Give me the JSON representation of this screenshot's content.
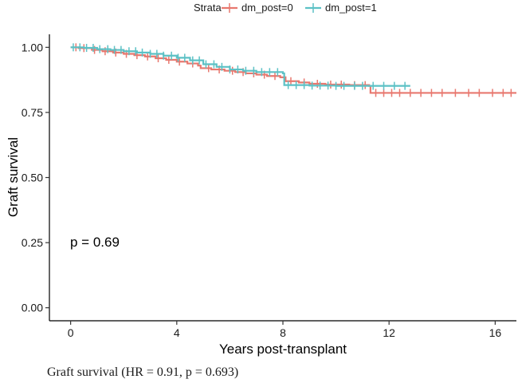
{
  "chart_data": {
    "type": "line",
    "subtype": "kaplan-meier",
    "title": "",
    "xlabel": "Years post-transplant",
    "ylabel": "Graft survival",
    "xlim": [
      -0.8,
      16.8
    ],
    "ylim": [
      -0.05,
      1.05
    ],
    "x_ticks": [
      0,
      4,
      8,
      12,
      16
    ],
    "x_tick_labels": [
      "0",
      "4",
      "8",
      "12",
      "16"
    ],
    "y_ticks": [
      0.0,
      0.25,
      0.5,
      0.75,
      1.0
    ],
    "y_tick_labels": [
      "0.00",
      "0.25",
      "0.50",
      "0.75",
      "1.00"
    ],
    "grid": false,
    "legend": {
      "title": "Strata",
      "position": "top",
      "entries": [
        "dm_post=0",
        "dm_post=1"
      ]
    },
    "annotation": "p = 0.69",
    "series": [
      {
        "name": "dm_post=0",
        "color": "#E8786F",
        "points": [
          [
            0,
            1.0
          ],
          [
            0.3,
            0.997
          ],
          [
            0.8,
            0.99
          ],
          [
            1.2,
            0.985
          ],
          [
            1.6,
            0.98
          ],
          [
            2.0,
            0.975
          ],
          [
            2.4,
            0.97
          ],
          [
            2.8,
            0.965
          ],
          [
            3.2,
            0.958
          ],
          [
            3.6,
            0.952
          ],
          [
            4.0,
            0.945
          ],
          [
            4.4,
            0.938
          ],
          [
            4.8,
            0.93
          ],
          [
            4.9,
            0.92
          ],
          [
            5.3,
            0.915
          ],
          [
            5.8,
            0.91
          ],
          [
            6.2,
            0.905
          ],
          [
            6.6,
            0.9
          ],
          [
            7.0,
            0.895
          ],
          [
            7.4,
            0.89
          ],
          [
            7.9,
            0.885
          ],
          [
            8.1,
            0.87
          ],
          [
            8.6,
            0.865
          ],
          [
            9.0,
            0.86
          ],
          [
            9.6,
            0.857
          ],
          [
            10.5,
            0.855
          ],
          [
            11.25,
            0.852
          ],
          [
            11.3,
            0.825
          ],
          [
            16.8,
            0.825
          ]
        ],
        "censor_times": [
          0.2,
          0.5,
          0.9,
          1.3,
          1.7,
          2.1,
          2.5,
          2.9,
          3.3,
          3.7,
          4.1,
          4.6,
          5.2,
          5.6,
          6.1,
          6.5,
          6.9,
          7.3,
          7.7,
          8.3,
          8.8,
          9.3,
          9.8,
          10.2,
          10.7,
          11.1,
          11.5,
          11.8,
          12.1,
          12.4,
          12.8,
          13.2,
          13.6,
          14.0,
          14.5,
          15.0,
          15.4,
          15.9,
          16.3,
          16.6
        ]
      },
      {
        "name": "dm_post=1",
        "color": "#5CC1C5",
        "points": [
          [
            0,
            1.0
          ],
          [
            0.5,
            0.998
          ],
          [
            1.0,
            0.993
          ],
          [
            1.5,
            0.99
          ],
          [
            2.0,
            0.985
          ],
          [
            2.5,
            0.98
          ],
          [
            3.0,
            0.975
          ],
          [
            3.5,
            0.968
          ],
          [
            4.0,
            0.96
          ],
          [
            4.5,
            0.95
          ],
          [
            5.0,
            0.935
          ],
          [
            5.5,
            0.925
          ],
          [
            6.0,
            0.915
          ],
          [
            6.5,
            0.91
          ],
          [
            7.0,
            0.905
          ],
          [
            7.5,
            0.905
          ],
          [
            8.0,
            0.9
          ],
          [
            8.05,
            0.855
          ],
          [
            9.0,
            0.853
          ],
          [
            10.0,
            0.852
          ],
          [
            11.0,
            0.852
          ],
          [
            12.8,
            0.852
          ]
        ],
        "censor_times": [
          0.1,
          0.35,
          0.6,
          0.85,
          1.1,
          1.4,
          1.65,
          1.9,
          2.2,
          2.45,
          2.7,
          3.0,
          3.25,
          3.5,
          3.8,
          4.05,
          4.3,
          4.6,
          4.85,
          5.1,
          5.4,
          5.7,
          6.0,
          6.3,
          6.6,
          6.9,
          7.2,
          7.5,
          7.8,
          8.2,
          8.5,
          8.8,
          9.1,
          9.4,
          9.7,
          10.0,
          10.3,
          10.7,
          11.0,
          11.4,
          11.8,
          12.2,
          12.6
        ]
      }
    ]
  },
  "caption": "Graft survival (HR = 0.91, p = 0.693)"
}
